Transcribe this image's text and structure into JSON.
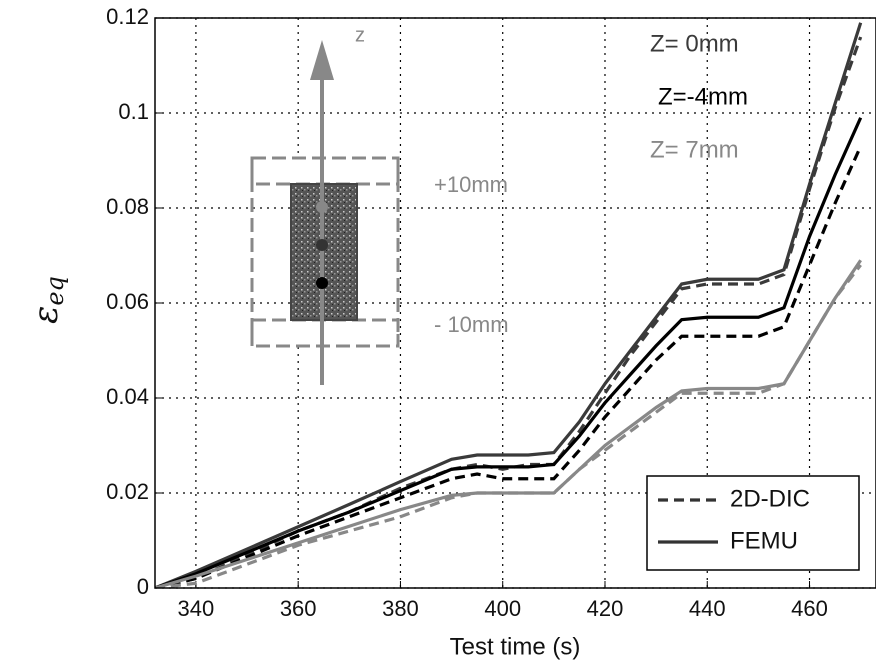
{
  "chart_data": {
    "type": "line",
    "x_label": "Test time (s)",
    "y_label": {
      "symbol": "ε",
      "subscript": "eq"
    },
    "x": [
      332,
      340,
      350,
      360,
      370,
      380,
      390,
      395,
      400,
      405,
      410,
      415,
      420,
      425,
      430,
      435,
      440,
      445,
      450,
      455,
      460,
      465,
      470
    ],
    "series": [
      {
        "color": "#3a3a3a",
        "dash": true,
        "values": [
          0,
          0.002,
          0.007,
          0.012,
          0.016,
          0.021,
          0.025,
          0.026,
          0.025,
          0.026,
          0.026,
          0.033,
          0.041,
          0.049,
          0.056,
          0.063,
          0.064,
          0.064,
          0.064,
          0.066,
          0.084,
          0.101,
          0.116
        ]
      },
      {
        "color": "#3a3a3a",
        "dash": false,
        "values": [
          0,
          0.0035,
          0.0082,
          0.0129,
          0.0176,
          0.0224,
          0.0271,
          0.028,
          0.028,
          0.028,
          0.0285,
          0.035,
          0.043,
          0.05,
          0.057,
          0.064,
          0.065,
          0.065,
          0.065,
          0.067,
          0.085,
          0.102,
          0.119
        ]
      },
      {
        "color": "#000000",
        "dash": true,
        "values": [
          0,
          0.002,
          0.0065,
          0.011,
          0.015,
          0.019,
          0.023,
          0.024,
          0.023,
          0.023,
          0.023,
          0.029,
          0.036,
          0.042,
          0.048,
          0.053,
          0.053,
          0.053,
          0.053,
          0.055,
          0.068,
          0.081,
          0.093
        ]
      },
      {
        "color": "#000000",
        "dash": false,
        "values": [
          0,
          0.003,
          0.0075,
          0.012,
          0.016,
          0.0205,
          0.025,
          0.0255,
          0.0255,
          0.0255,
          0.026,
          0.032,
          0.039,
          0.045,
          0.051,
          0.0565,
          0.057,
          0.057,
          0.057,
          0.059,
          0.074,
          0.087,
          0.099
        ]
      },
      {
        "color": "#888888",
        "dash": true,
        "values": [
          0,
          0.001,
          0.005,
          0.009,
          0.012,
          0.015,
          0.019,
          0.02,
          0.02,
          0.02,
          0.02,
          0.025,
          0.029,
          0.033,
          0.037,
          0.041,
          0.041,
          0.041,
          0.041,
          0.043,
          0.052,
          0.061,
          0.068
        ]
      },
      {
        "color": "#888888",
        "dash": false,
        "values": [
          0,
          0.0025,
          0.006,
          0.0095,
          0.013,
          0.0165,
          0.0195,
          0.02,
          0.02,
          0.02,
          0.02,
          0.025,
          0.03,
          0.034,
          0.038,
          0.0415,
          0.042,
          0.042,
          0.042,
          0.043,
          0.052,
          0.061,
          0.069
        ]
      }
    ],
    "legend": [
      {
        "label": "2D-DIC",
        "dash": true
      },
      {
        "label": "FEMU",
        "dash": false
      }
    ],
    "annotations": [
      {
        "text": "Z= 0mm",
        "color": "#3a3a3a"
      },
      {
        "text": "Z=-4mm",
        "color": "#000000"
      },
      {
        "text": "Z= 7mm",
        "color": "#888888"
      }
    ],
    "inset": {
      "axis": "z",
      "top": "+10mm",
      "bottom": "- 10mm"
    },
    "xlim": [
      332,
      473
    ],
    "ylim": [
      0,
      0.12
    ],
    "xticks": [
      340,
      360,
      380,
      400,
      420,
      440,
      460
    ],
    "yticks": [
      0,
      0.02,
      0.04,
      0.06,
      0.08,
      0.1,
      0.12
    ],
    "grid": true
  }
}
